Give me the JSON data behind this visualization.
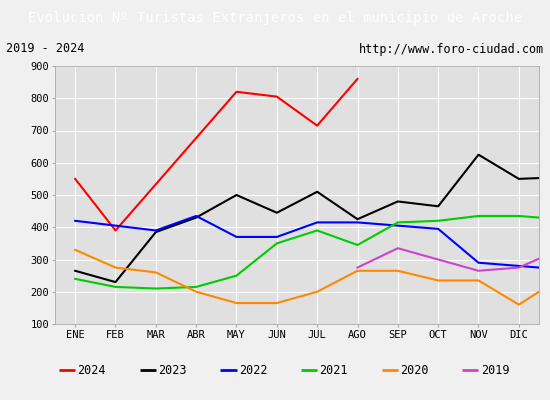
{
  "title": "Evolucion Nº Turistas Extranjeros en el municipio de Aroche",
  "subtitle_left": "2019 - 2024",
  "subtitle_right": "http://www.foro-ciudad.com",
  "title_bg": "#4472c4",
  "title_color": "white",
  "x_labels": [
    "ENE",
    "FEB",
    "MAR",
    "ABR",
    "MAY",
    "JUN",
    "JUL",
    "AGO",
    "SEP",
    "OCT",
    "NOV",
    "DIC"
  ],
  "ylim": [
    100,
    900
  ],
  "yticks": [
    100,
    200,
    300,
    400,
    500,
    600,
    700,
    800,
    900
  ],
  "series": {
    "2024": {
      "values": [
        550,
        390,
        null,
        null,
        820,
        805,
        715,
        860,
        null,
        null,
        null,
        null
      ],
      "color": "#ff0000",
      "linewidth": 1.5
    },
    "2023": {
      "values": [
        265,
        230,
        385,
        430,
        500,
        445,
        510,
        425,
        480,
        465,
        625,
        550,
        555
      ],
      "color": "#000000",
      "linewidth": 1.5
    },
    "2022": {
      "values": [
        420,
        405,
        390,
        435,
        370,
        370,
        415,
        415,
        405,
        395,
        290,
        280,
        270
      ],
      "color": "#0000ff",
      "linewidth": 1.5
    },
    "2021": {
      "values": [
        240,
        215,
        210,
        215,
        250,
        350,
        390,
        345,
        415,
        420,
        435,
        435,
        425
      ],
      "color": "#00cc00",
      "linewidth": 1.5
    },
    "2020": {
      "values": [
        330,
        275,
        260,
        200,
        165,
        165,
        200,
        265,
        265,
        235,
        235,
        160,
        240
      ],
      "color": "#ff8800",
      "linewidth": 1.5
    },
    "2019": {
      "values": [
        null,
        null,
        null,
        null,
        null,
        null,
        null,
        275,
        335,
        null,
        265,
        275,
        330
      ],
      "color": "#cc44cc",
      "linewidth": 1.5
    }
  },
  "legend_order": [
    "2024",
    "2023",
    "2022",
    "2021",
    "2020",
    "2019"
  ],
  "bg_color": "#f0f0f0",
  "plot_bg": "#e0e0e0",
  "grid_color": "#ffffff"
}
